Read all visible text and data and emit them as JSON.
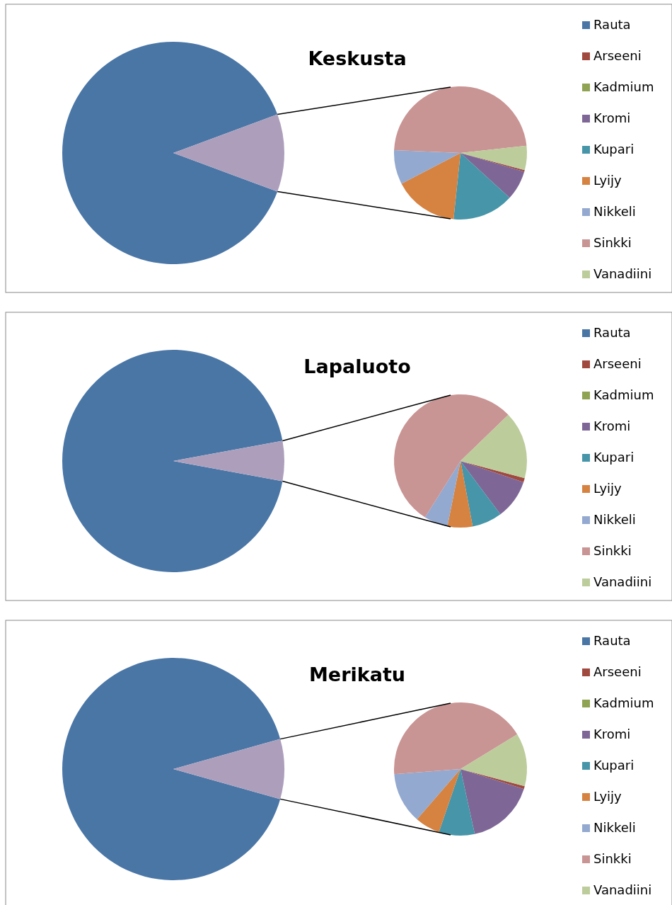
{
  "chart_data": [
    {
      "type": "pie",
      "categories": [
        "Rauta",
        null
      ],
      "values": [
        88.7,
        11.3
      ],
      "colors": [
        "#4a76a6",
        "#ad9fbc"
      ],
      "legend": "right"
    },
    {
      "type": "pie",
      "title": "Keskusta",
      "categories": [
        "Arseeni",
        "Kadmium",
        "Kromi",
        "Kupari",
        "Lyijy",
        "Nikkeli",
        "Sinkki",
        "Vanadiini"
      ],
      "values": [
        0.4,
        0,
        7.2,
        14.9,
        15.7,
        8.3,
        47.6,
        5.9
      ],
      "colors": [
        "#a0493f",
        "#8fa352",
        "#7e6796",
        "#4695a8",
        "#d68240",
        "#93a9cf",
        "#c99494",
        "#bccc9b"
      ],
      "legend": "right"
    },
    {
      "type": "pie",
      "categories": [
        "Rauta",
        null
      ],
      "values": [
        94.2,
        5.8
      ],
      "colors": [
        "#4a76a6",
        "#ad9fbc"
      ],
      "legend": "right"
    },
    {
      "type": "pie",
      "title": "Lapaluoto",
      "categories": [
        "Arseeni",
        "Kadmium",
        "Kromi",
        "Kupari",
        "Lyijy",
        "Nikkeli",
        "Sinkki",
        "Vanadiini"
      ],
      "values": [
        1.0,
        0,
        9.6,
        7.3,
        6.1,
        5.8,
        53.8,
        16.4
      ],
      "colors": [
        "#a0493f",
        "#8fa352",
        "#7e6796",
        "#4695a8",
        "#d68240",
        "#93a9cf",
        "#c99494",
        "#bccc9b"
      ],
      "legend": "right"
    },
    {
      "type": "pie",
      "categories": [
        "Rauta",
        null
      ],
      "values": [
        91.3,
        8.7
      ],
      "colors": [
        "#4a76a6",
        "#ad9fbc"
      ],
      "legend": "right"
    },
    {
      "type": "pie",
      "title": "Merikatu",
      "categories": [
        "Arseeni",
        "Kadmium",
        "Kromi",
        "Kupari",
        "Lyijy",
        "Nikkeli",
        "Sinkki",
        "Vanadiini"
      ],
      "values": [
        0.7,
        0,
        16.7,
        8.7,
        6.1,
        12.4,
        42.5,
        12.9
      ],
      "colors": [
        "#a0493f",
        "#8fa352",
        "#7e6796",
        "#4695a8",
        "#d68240",
        "#93a9cf",
        "#c99494",
        "#bccc9b"
      ],
      "legend": "right"
    }
  ]
}
